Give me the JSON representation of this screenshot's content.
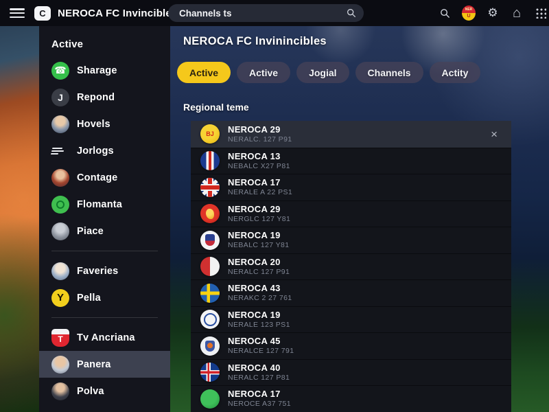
{
  "topbar": {
    "title": "NEROCA FC Invincibles",
    "logo_glyph": "C",
    "search_value": "Channels ts",
    "icons": [
      "search-icon",
      "club-badge-icon",
      "gear-icon",
      "home-icon",
      "apps-grid-icon"
    ],
    "gear_glyph": "⚙",
    "home_glyph": "⌂",
    "badge_top_text": "NER",
    "badge_glyph": "U"
  },
  "sidebar": {
    "heading": "Active",
    "items": [
      {
        "type": "item",
        "label": "Sharage",
        "icon": "phone",
        "glyph": "☎"
      },
      {
        "type": "item",
        "label": "Repond",
        "icon": "letter-j",
        "glyph": "J"
      },
      {
        "type": "item",
        "label": "Hovels",
        "icon": "avatar",
        "avatar": "a1"
      },
      {
        "type": "item",
        "label": "Jorlogs",
        "icon": "lines"
      },
      {
        "type": "item",
        "label": "Contage",
        "icon": "avatar",
        "avatar": "a2"
      },
      {
        "type": "item",
        "label": "Flomanta",
        "icon": "spiral"
      },
      {
        "type": "item",
        "label": "Piace",
        "icon": "avatar",
        "avatar": "a3"
      },
      {
        "type": "divider"
      },
      {
        "type": "item",
        "label": "Faveries",
        "icon": "avatar",
        "avatar": "a4"
      },
      {
        "type": "item",
        "label": "Pella",
        "icon": "letter-y",
        "glyph": "Y"
      },
      {
        "type": "divider"
      },
      {
        "type": "item",
        "label": "Tv Ancriana",
        "icon": "shield",
        "glyph": "T"
      },
      {
        "type": "item",
        "label": "Panera",
        "icon": "avatar",
        "avatar": "a5",
        "selected": true
      },
      {
        "type": "item",
        "label": "Polva",
        "icon": "avatar",
        "avatar": "a6"
      }
    ]
  },
  "main": {
    "title": "NEROCA FC Invinincibles",
    "tabs": [
      {
        "label": "Active",
        "active": true
      },
      {
        "label": "Active",
        "active": false
      },
      {
        "label": "Jogial",
        "active": false
      },
      {
        "label": "Channels",
        "active": false
      },
      {
        "label": "Actity",
        "active": false
      }
    ],
    "section_label": "Regional teme",
    "channels": [
      {
        "name": "NEROCA 29",
        "subtitle": "NERALC. 127 P91",
        "flag": "crest-yellow",
        "glyph": "BJ",
        "selected": true,
        "closable": true
      },
      {
        "name": "NEROCA 13",
        "subtitle": "NEBALC X27 P81",
        "flag": "cockade"
      },
      {
        "name": "NEROCA 17",
        "subtitle": "NERALE A 22 PS1",
        "flag": "union-jack"
      },
      {
        "name": "NEROCA 29",
        "subtitle": "NERGLC 127 Y81",
        "flag": "lion-red"
      },
      {
        "name": "NEROCA 19",
        "subtitle": "NEBALC 127 Y81",
        "flag": "crest-wb"
      },
      {
        "name": "NEROCA 20",
        "subtitle": "NERALC 127 P91",
        "flag": "half-rw"
      },
      {
        "name": "NEROCA 43",
        "subtitle": "NERAKC 2 27 761",
        "flag": "sweden"
      },
      {
        "name": "NEROCA 19",
        "subtitle": "NERALE 123 PS1",
        "flag": "emblem-blue"
      },
      {
        "name": "NEROCA 45",
        "subtitle": "NERALCE 127 791",
        "flag": "crest-br"
      },
      {
        "name": "NEROCA 40",
        "subtitle": "NERALC 127 P81",
        "flag": "iceland"
      },
      {
        "name": "NEROCA 17",
        "subtitle": "NEROCE A37 751",
        "flag": "green-a"
      }
    ],
    "close_glyph": "×"
  },
  "colors": {
    "accent_yellow": "#f5c81b",
    "topbar_bg": "#0b0c12",
    "sidebar_bg": "#14151d",
    "sidebar_selected": "#3d4150",
    "panel_bg": "#13151b",
    "row_selected": "#2a2e39",
    "subtitle_text": "#7f8593"
  }
}
